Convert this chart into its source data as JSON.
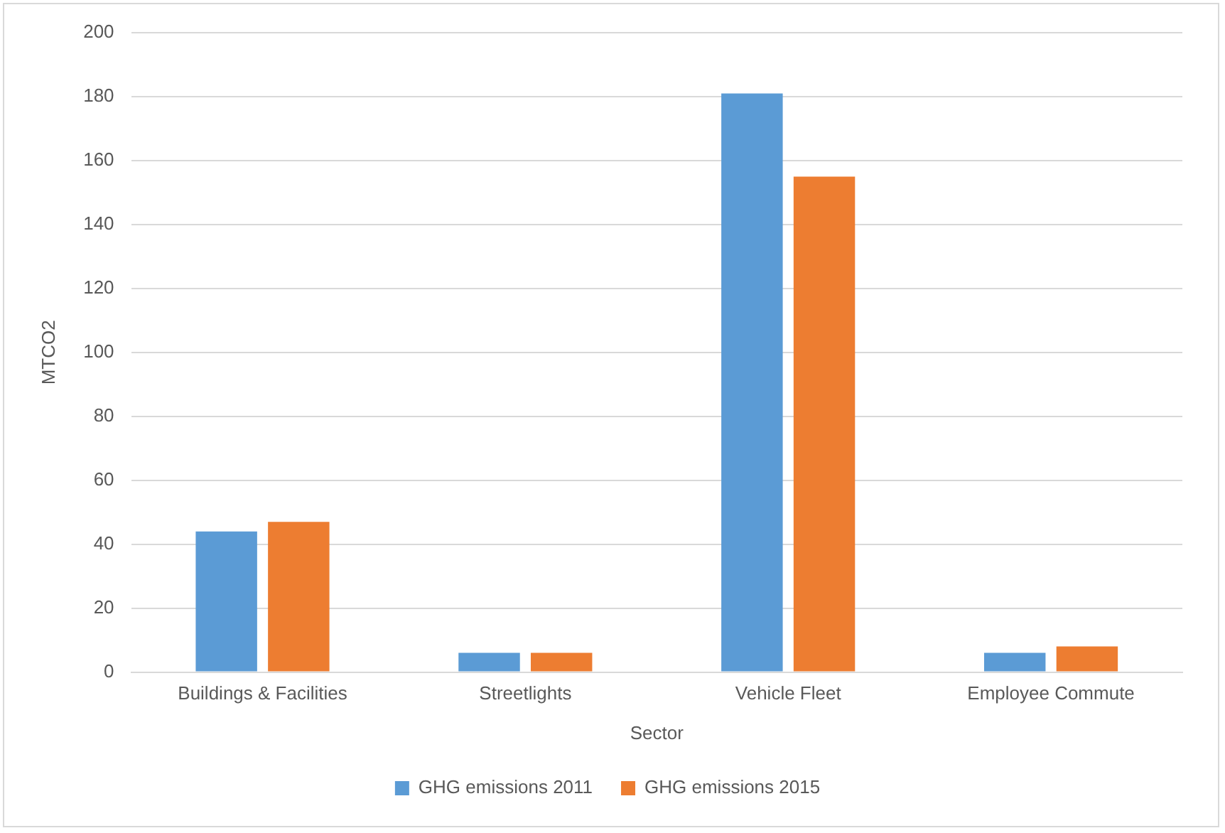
{
  "chart_data": {
    "type": "bar",
    "xlabel": "Sector",
    "ylabel": "MTCO2",
    "categories": [
      "Buildings & Facilities",
      "Streetlights",
      "Vehicle Fleet",
      "Employee Commute"
    ],
    "series": [
      {
        "name": "GHG emissions 2011",
        "color": "#5b9bd5",
        "values": [
          44,
          6,
          181,
          6
        ]
      },
      {
        "name": "GHG emissions 2015",
        "color": "#ed7d31",
        "values": [
          47,
          6,
          155,
          8
        ]
      }
    ],
    "ylim": [
      0,
      200
    ],
    "yticks": [
      0,
      20,
      40,
      60,
      80,
      100,
      120,
      140,
      160,
      180,
      200
    ],
    "grid": "y",
    "legend": "bottom"
  }
}
